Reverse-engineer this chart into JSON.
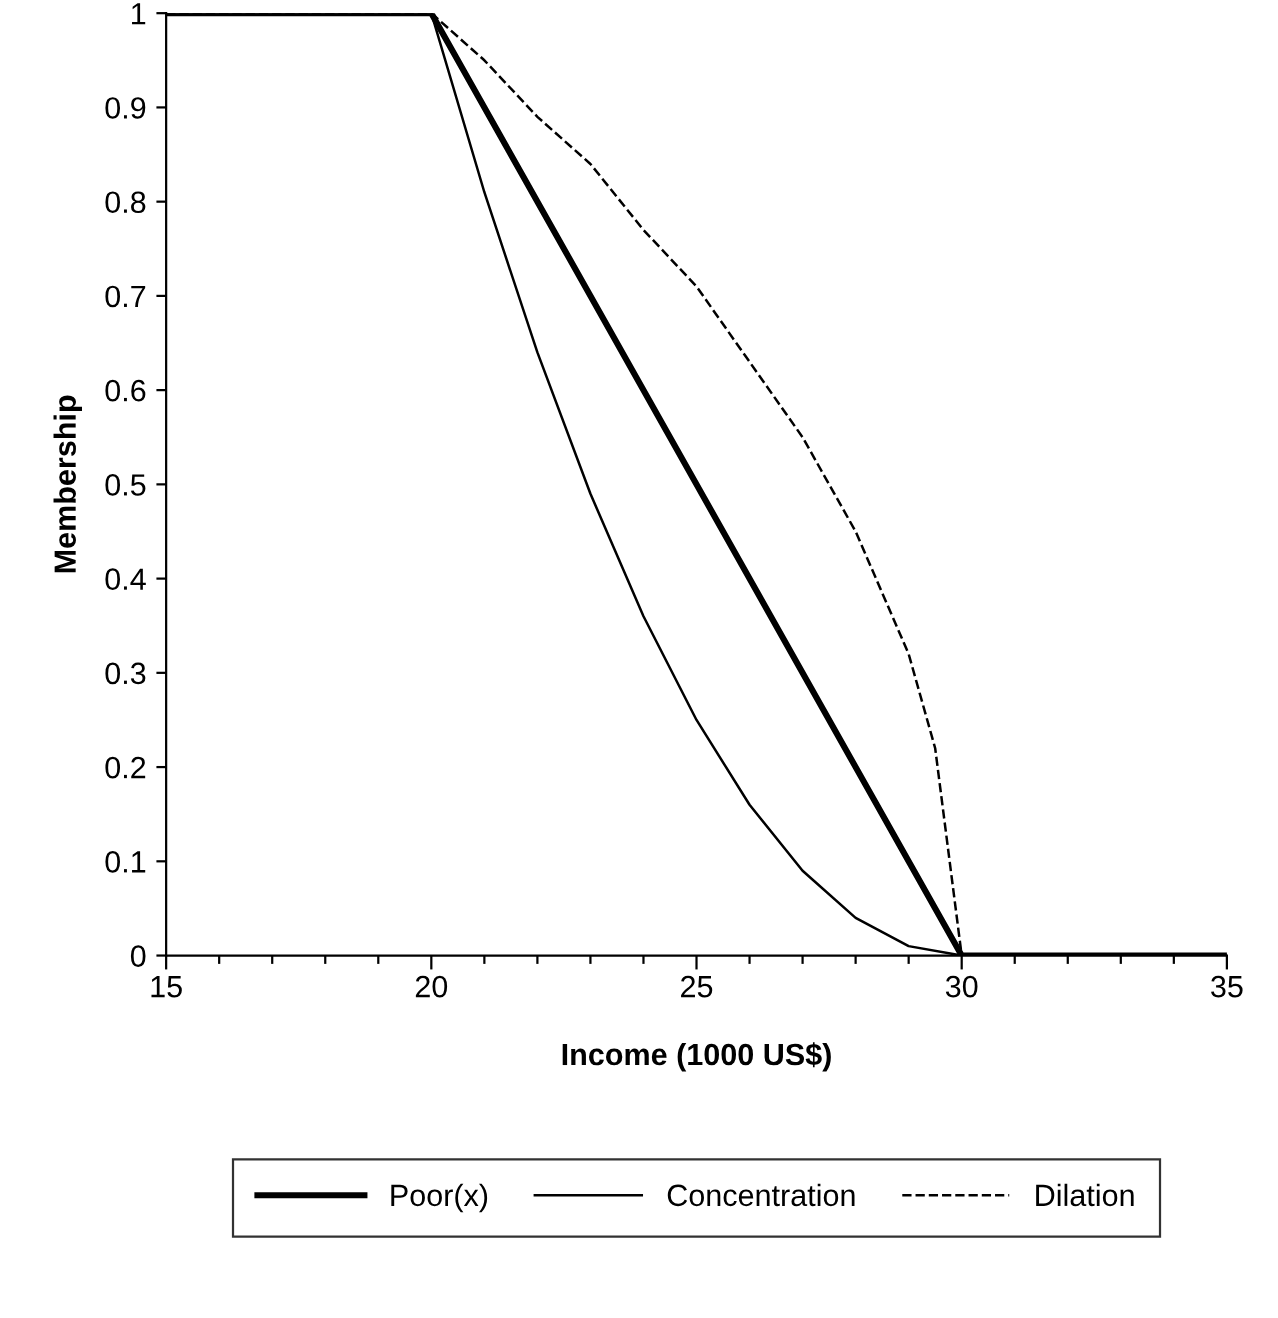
{
  "chart_data": {
    "type": "line",
    "xlabel": "Income (1000 US$)",
    "ylabel": "Membership",
    "xlim": [
      15,
      35
    ],
    "ylim": [
      0,
      1
    ],
    "xticks": [
      15,
      {
        "value": 16,
        "label": null
      },
      {
        "value": 17,
        "label": null
      },
      {
        "value": 18,
        "label": null
      },
      {
        "value": 19,
        "label": null
      },
      20,
      {
        "value": 21,
        "label": null
      },
      {
        "value": 22,
        "label": null
      },
      {
        "value": 23,
        "label": null
      },
      {
        "value": 24,
        "label": null
      },
      25,
      {
        "value": 26,
        "label": null
      },
      {
        "value": 27,
        "label": null
      },
      {
        "value": 28,
        "label": null
      },
      {
        "value": 29,
        "label": null
      },
      30,
      {
        "value": 31,
        "label": null
      },
      {
        "value": 32,
        "label": null
      },
      {
        "value": 33,
        "label": null
      },
      {
        "value": 34,
        "label": null
      },
      35
    ],
    "yticks": [
      0,
      0.1,
      0.2,
      0.3,
      0.4,
      0.5,
      0.6,
      0.7,
      0.8,
      0.9,
      1
    ],
    "grid": false,
    "legend": "bottom",
    "marker": "none",
    "series": [
      {
        "name": "Poor(x)",
        "color": "#000000",
        "line_style": "solid",
        "x": [
          15,
          20,
          30,
          35
        ],
        "values": [
          1,
          1,
          0,
          0
        ]
      },
      {
        "name": "Concentration",
        "color": "#000000",
        "line_style": "solid",
        "x": [
          15,
          20,
          21,
          22,
          23,
          24,
          25,
          26,
          27,
          28,
          29,
          30,
          35
        ],
        "values": [
          1,
          1,
          0.81,
          0.64,
          0.49,
          0.36,
          0.25,
          0.16,
          0.09,
          0.04,
          0.01,
          0,
          0
        ]
      },
      {
        "name": "Dilation",
        "color": "#000000",
        "line_style": "dashed",
        "x": [
          15,
          20,
          21,
          22,
          23,
          24,
          25,
          26,
          27,
          28,
          29,
          29.5,
          30,
          35
        ],
        "values": [
          1,
          1,
          0.95,
          0.89,
          0.84,
          0.77,
          0.71,
          0.63,
          0.55,
          0.45,
          0.32,
          0.22,
          0,
          0
        ]
      }
    ]
  }
}
